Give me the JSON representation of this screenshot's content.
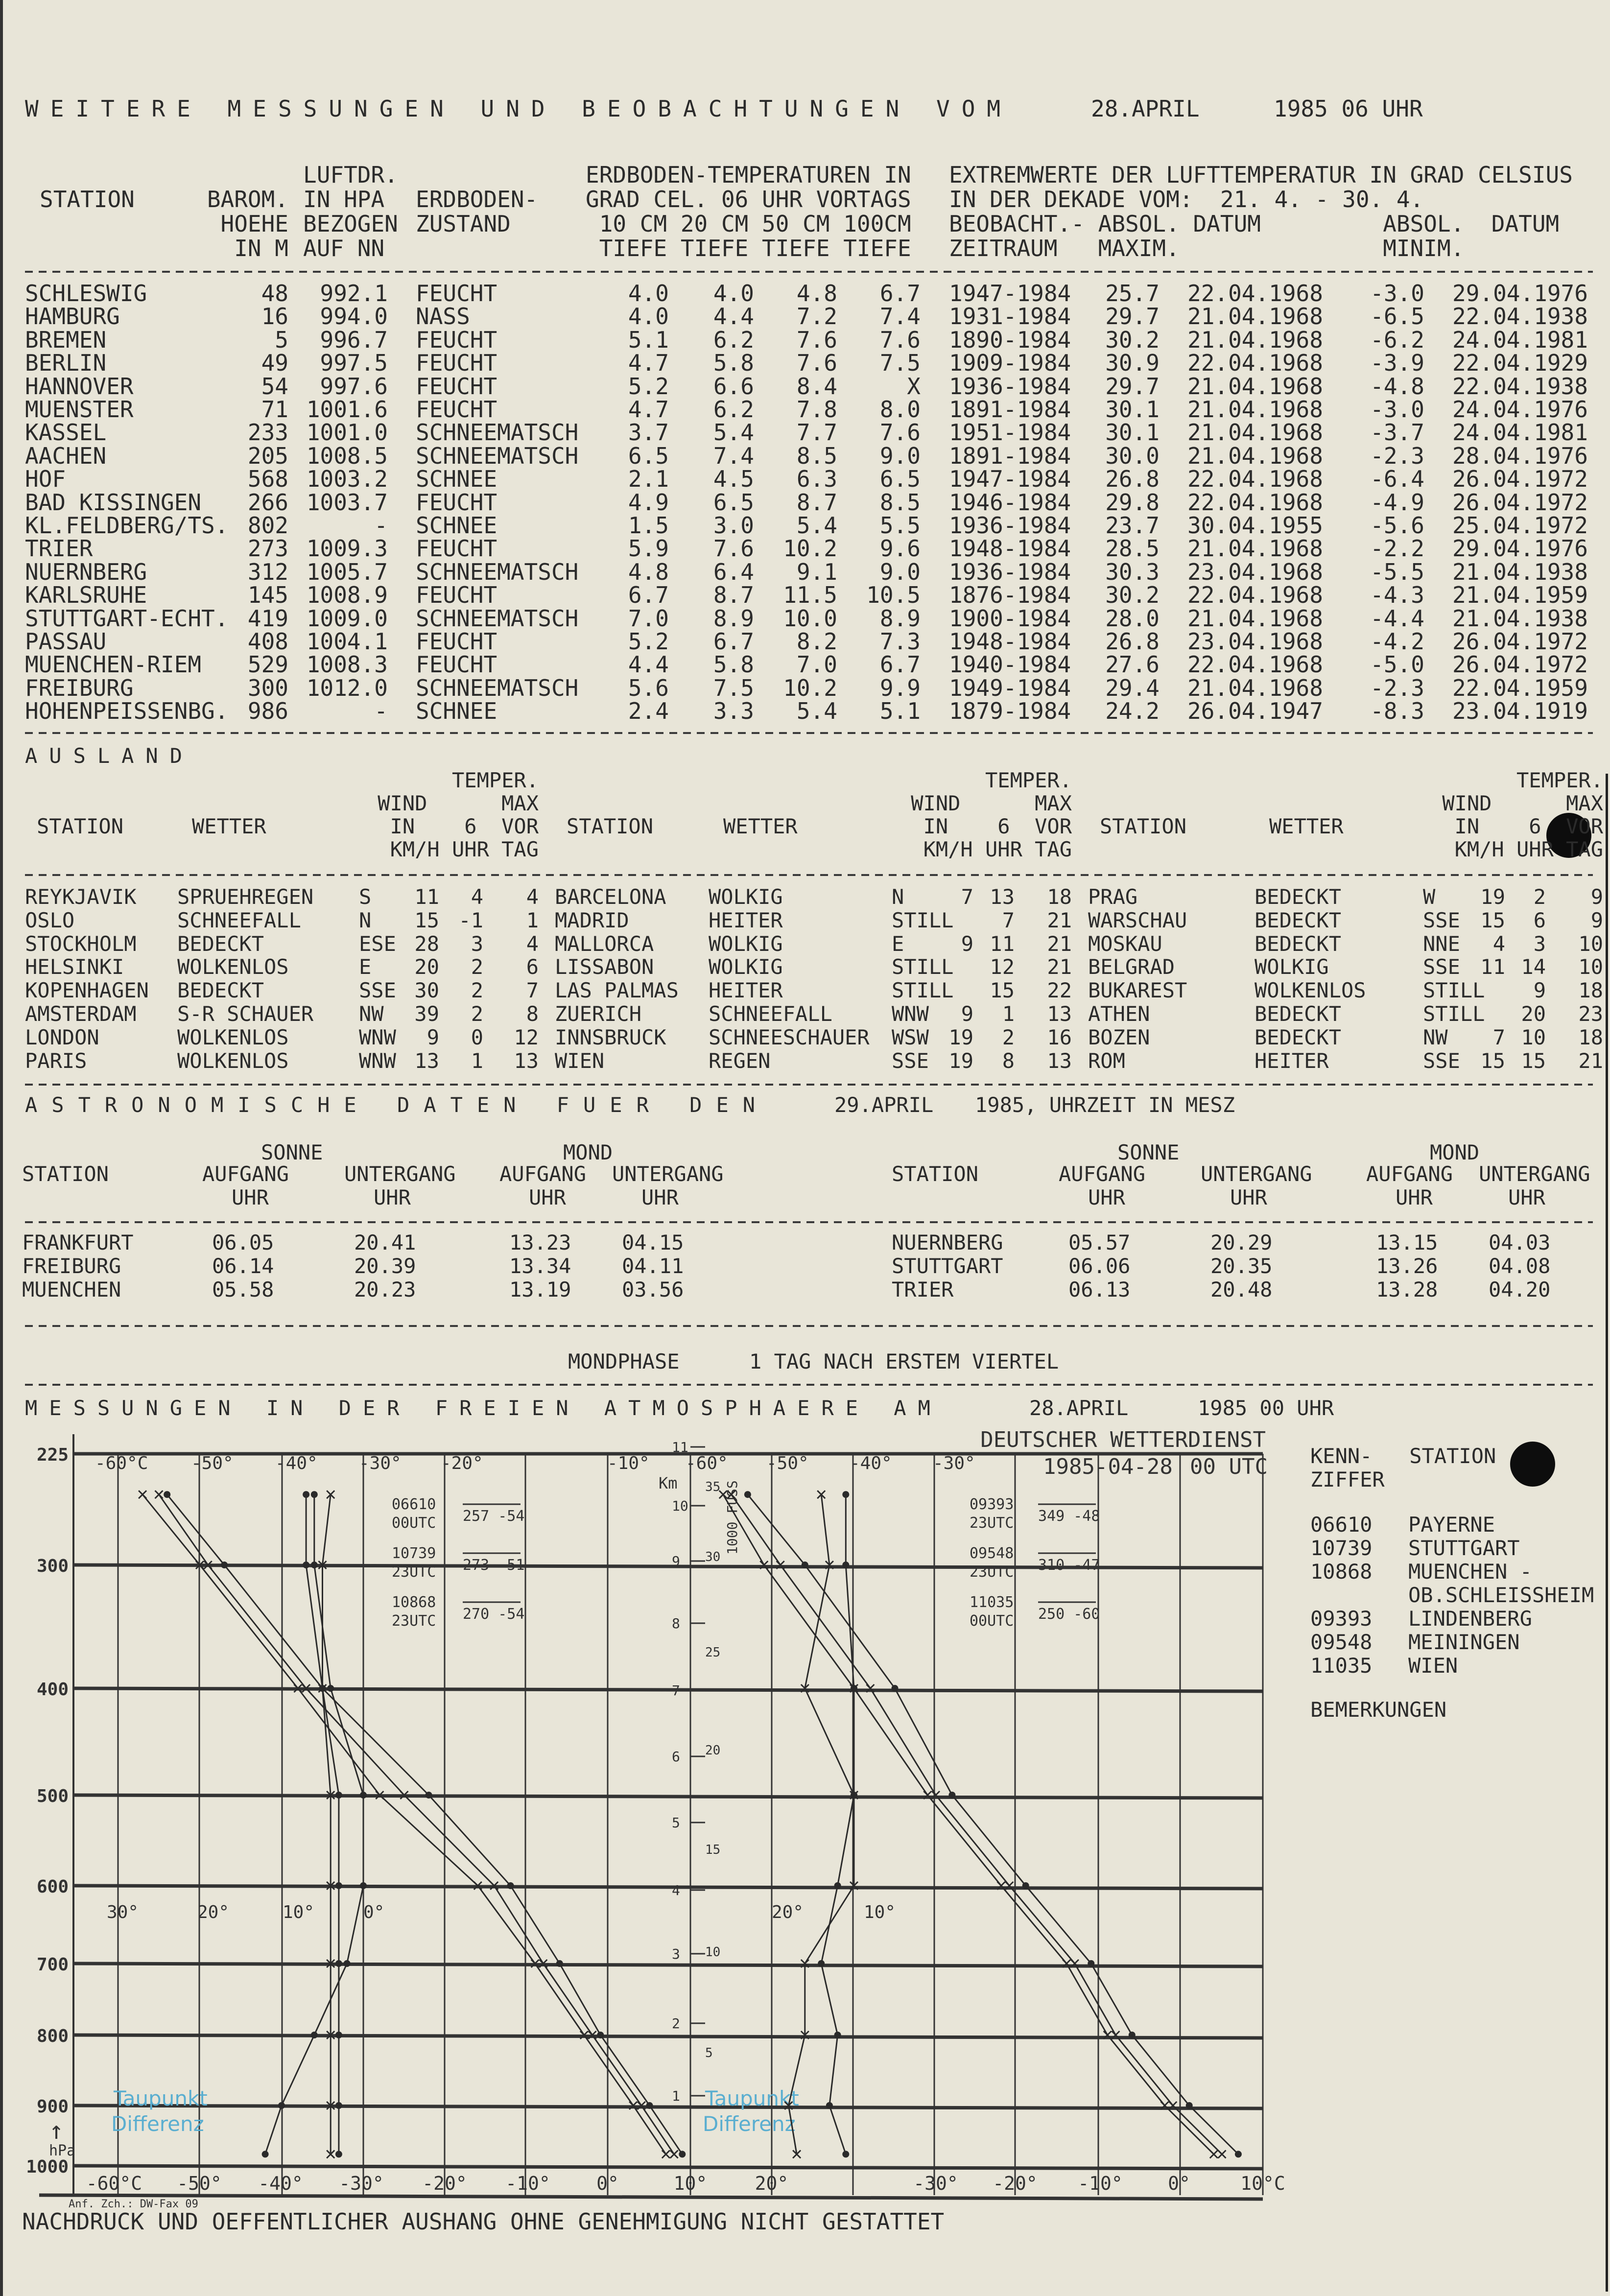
{
  "title": {
    "text": "WEITERE MESSUNGEN UND BEOBACHTUNGEN VOM",
    "date": "28.APRIL",
    "time": "1985 06 UHR"
  },
  "germany": {
    "headers": {
      "station": "STATION",
      "barom": [
        "BAROM.",
        "HOEHE",
        "IN M"
      ],
      "pressure": [
        "LUFTDR.",
        "IN HPA",
        "BEZOGEN",
        "AUF NN"
      ],
      "state": [
        "ERDBODEN-",
        "ZUSTAND"
      ],
      "soil": [
        "ERDBODEN-TEMPERATUREN IN",
        "GRAD CEL. 06 UHR VORTAGS",
        " 10 CM 20 CM 50 CM 100CM",
        " TIEFE TIEFE TIEFE TIEFE"
      ],
      "extreme": [
        "EXTREMWERTE DER LUFTTEMPERATUR IN GRAD CELSIUS",
        "IN DER DEKADE VOM:  21. 4. - 30. 4.",
        "BEOBACHT.- ABSOL. DATUM         ABSOL.  DATUM",
        "ZEITRAUM   MAXIM.               MINIM."
      ]
    },
    "rows": [
      {
        "station": "SCHLESWIG",
        "height": "48",
        "pressure": "992.1",
        "state": "FEUCHT",
        "t10": "4.0",
        "t20": "4.0",
        "t50": "4.8",
        "t100": "6.7",
        "period": "1947-1984",
        "max": "25.7",
        "max_date": "22.04.1968",
        "min": "-3.0",
        "min_date": "29.04.1976"
      },
      {
        "station": "HAMBURG",
        "height": "16",
        "pressure": "994.0",
        "state": "NASS",
        "t10": "4.0",
        "t20": "4.4",
        "t50": "7.2",
        "t100": "7.4",
        "period": "1931-1984",
        "max": "29.7",
        "max_date": "21.04.1968",
        "min": "-6.5",
        "min_date": "22.04.1938"
      },
      {
        "station": "BREMEN",
        "height": "5",
        "pressure": "996.7",
        "state": "FEUCHT",
        "t10": "5.1",
        "t20": "6.2",
        "t50": "7.6",
        "t100": "7.6",
        "period": "1890-1984",
        "max": "30.2",
        "max_date": "21.04.1968",
        "min": "-6.2",
        "min_date": "24.04.1981"
      },
      {
        "station": "BERLIN",
        "height": "49",
        "pressure": "997.5",
        "state": "FEUCHT",
        "t10": "4.7",
        "t20": "5.8",
        "t50": "7.6",
        "t100": "7.5",
        "period": "1909-1984",
        "max": "30.9",
        "max_date": "22.04.1968",
        "min": "-3.9",
        "min_date": "22.04.1929"
      },
      {
        "station": "HANNOVER",
        "height": "54",
        "pressure": "997.6",
        "state": "FEUCHT",
        "t10": "5.2",
        "t20": "6.6",
        "t50": "8.4",
        "t100": "X",
        "period": "1936-1984",
        "max": "29.7",
        "max_date": "21.04.1968",
        "min": "-4.8",
        "min_date": "22.04.1938"
      },
      {
        "station": "MUENSTER",
        "height": "71",
        "pressure": "1001.6",
        "state": "FEUCHT",
        "t10": "4.7",
        "t20": "6.2",
        "t50": "7.8",
        "t100": "8.0",
        "period": "1891-1984",
        "max": "30.1",
        "max_date": "21.04.1968",
        "min": "-3.0",
        "min_date": "24.04.1976"
      },
      {
        "station": "KASSEL",
        "height": "233",
        "pressure": "1001.0",
        "state": "SCHNEEMATSCH",
        "t10": "3.7",
        "t20": "5.4",
        "t50": "7.7",
        "t100": "7.6",
        "period": "1951-1984",
        "max": "30.1",
        "max_date": "21.04.1968",
        "min": "-3.7",
        "min_date": "24.04.1981"
      },
      {
        "station": "AACHEN",
        "height": "205",
        "pressure": "1008.5",
        "state": "SCHNEEMATSCH",
        "t10": "6.5",
        "t20": "7.4",
        "t50": "8.5",
        "t100": "9.0",
        "period": "1891-1984",
        "max": "30.0",
        "max_date": "21.04.1968",
        "min": "-2.3",
        "min_date": "28.04.1976"
      },
      {
        "station": "HOF",
        "height": "568",
        "pressure": "1003.2",
        "state": "SCHNEE",
        "t10": "2.1",
        "t20": "4.5",
        "t50": "6.3",
        "t100": "6.5",
        "period": "1947-1984",
        "max": "26.8",
        "max_date": "22.04.1968",
        "min": "-6.4",
        "min_date": "26.04.1972"
      },
      {
        "station": "BAD KISSINGEN",
        "height": "266",
        "pressure": "1003.7",
        "state": "FEUCHT",
        "t10": "4.9",
        "t20": "6.5",
        "t50": "8.7",
        "t100": "8.5",
        "period": "1946-1984",
        "max": "29.8",
        "max_date": "22.04.1968",
        "min": "-4.9",
        "min_date": "26.04.1972"
      },
      {
        "station": "KL.FELDBERG/TS.",
        "height": "802",
        "pressure": "-",
        "state": "SCHNEE",
        "t10": "1.5",
        "t20": "3.0",
        "t50": "5.4",
        "t100": "5.5",
        "period": "1936-1984",
        "max": "23.7",
        "max_date": "30.04.1955",
        "min": "-5.6",
        "min_date": "25.04.1972"
      },
      {
        "station": "TRIER",
        "height": "273",
        "pressure": "1009.3",
        "state": "FEUCHT",
        "t10": "5.9",
        "t20": "7.6",
        "t50": "10.2",
        "t100": "9.6",
        "period": "1948-1984",
        "max": "28.5",
        "max_date": "21.04.1968",
        "min": "-2.2",
        "min_date": "29.04.1976"
      },
      {
        "station": "NUERNBERG",
        "height": "312",
        "pressure": "1005.7",
        "state": "SCHNEEMATSCH",
        "t10": "4.8",
        "t20": "6.4",
        "t50": "9.1",
        "t100": "9.0",
        "period": "1936-1984",
        "max": "30.3",
        "max_date": "23.04.1968",
        "min": "-5.5",
        "min_date": "21.04.1938"
      },
      {
        "station": "KARLSRUHE",
        "height": "145",
        "pressure": "1008.9",
        "state": "FEUCHT",
        "t10": "6.7",
        "t20": "8.7",
        "t50": "11.5",
        "t100": "10.5",
        "period": "1876-1984",
        "max": "30.2",
        "max_date": "22.04.1968",
        "min": "-4.3",
        "min_date": "21.04.1959"
      },
      {
        "station": "STUTTGART-ECHT.",
        "height": "419",
        "pressure": "1009.0",
        "state": "SCHNEEMATSCH",
        "t10": "7.0",
        "t20": "8.9",
        "t50": "10.0",
        "t100": "8.9",
        "period": "1900-1984",
        "max": "28.0",
        "max_date": "21.04.1968",
        "min": "-4.4",
        "min_date": "21.04.1938"
      },
      {
        "station": "PASSAU",
        "height": "408",
        "pressure": "1004.1",
        "state": "FEUCHT",
        "t10": "5.2",
        "t20": "6.7",
        "t50": "8.2",
        "t100": "7.3",
        "period": "1948-1984",
        "max": "26.8",
        "max_date": "23.04.1968",
        "min": "-4.2",
        "min_date": "26.04.1972"
      },
      {
        "station": "MUENCHEN-RIEM",
        "height": "529",
        "pressure": "1008.3",
        "state": "FEUCHT",
        "t10": "4.4",
        "t20": "5.8",
        "t50": "7.0",
        "t100": "6.7",
        "period": "1940-1984",
        "max": "27.6",
        "max_date": "22.04.1968",
        "min": "-5.0",
        "min_date": "26.04.1972"
      },
      {
        "station": "FREIBURG",
        "height": "300",
        "pressure": "1012.0",
        "state": "SCHNEEMATSCH",
        "t10": "5.6",
        "t20": "7.5",
        "t50": "10.2",
        "t100": "9.9",
        "period": "1949-1984",
        "max": "29.4",
        "max_date": "21.04.1968",
        "min": "-2.3",
        "min_date": "22.04.1959"
      },
      {
        "station": "HOHENPEISSENBG.",
        "height": "986",
        "pressure": "-",
        "state": "SCHNEE",
        "t10": "2.4",
        "t20": "3.3",
        "t50": "5.4",
        "t100": "5.1",
        "period": "1879-1984",
        "max": "24.2",
        "max_date": "26.04.1947",
        "min": "-8.3",
        "min_date": "23.04.1919"
      }
    ]
  },
  "ausland": {
    "title": "AUSLAND",
    "headers": {
      "station": "STATION",
      "weather": "WETTER",
      "block": [
        "     TEMPER.",
        "WIND      MAX",
        " IN    6  VOR",
        "KM/H UHR TAG"
      ]
    },
    "groups": [
      {
        "rows": [
          {
            "station": "REYKJAVIK",
            "weather": "SPRUEHREGEN",
            "dir": "S",
            "speed": "11",
            "t6": "4",
            "max": "4"
          },
          {
            "station": "OSLO",
            "weather": "SCHNEEFALL",
            "dir": "N",
            "speed": "15",
            "t6": "-1",
            "max": "1"
          },
          {
            "station": "STOCKHOLM",
            "weather": "BEDECKT",
            "dir": "ESE",
            "speed": "28",
            "t6": "3",
            "max": "4"
          },
          {
            "station": "HELSINKI",
            "weather": "WOLKENLOS",
            "dir": "E",
            "speed": "20",
            "t6": "2",
            "max": "6"
          },
          {
            "station": "KOPENHAGEN",
            "weather": "BEDECKT",
            "dir": "SSE",
            "speed": "30",
            "t6": "2",
            "max": "7"
          },
          {
            "station": "AMSTERDAM",
            "weather": "S-R SCHAUER",
            "dir": "NW",
            "speed": "39",
            "t6": "2",
            "max": "8"
          },
          {
            "station": "LONDON",
            "weather": "WOLKENLOS",
            "dir": "WNW",
            "speed": "9",
            "t6": "0",
            "max": "12"
          },
          {
            "station": "PARIS",
            "weather": "WOLKENLOS",
            "dir": "WNW",
            "speed": "13",
            "t6": "1",
            "max": "13"
          }
        ]
      },
      {
        "rows": [
          {
            "station": "BARCELONA",
            "weather": "WOLKIG",
            "dir": "N",
            "speed": "7",
            "t6": "13",
            "max": "18"
          },
          {
            "station": "MADRID",
            "weather": "HEITER",
            "dir": "STILL",
            "speed": "",
            "t6": "7",
            "max": "21"
          },
          {
            "station": "MALLORCA",
            "weather": "WOLKIG",
            "dir": "E",
            "speed": "9",
            "t6": "11",
            "max": "21"
          },
          {
            "station": "LISSABON",
            "weather": "WOLKIG",
            "dir": "STILL",
            "speed": "",
            "t6": "12",
            "max": "21"
          },
          {
            "station": "LAS PALMAS",
            "weather": "HEITER",
            "dir": "STILL",
            "speed": "",
            "t6": "15",
            "max": "22"
          },
          {
            "station": "ZUERICH",
            "weather": "SCHNEEFALL",
            "dir": "WNW",
            "speed": "9",
            "t6": "1",
            "max": "13"
          },
          {
            "station": "INNSBRUCK",
            "weather": "SCHNEESCHAUER",
            "dir": "WSW",
            "speed": "19",
            "t6": "2",
            "max": "16"
          },
          {
            "station": "WIEN",
            "weather": "REGEN",
            "dir": "SSE",
            "speed": "19",
            "t6": "8",
            "max": "13"
          }
        ]
      },
      {
        "rows": [
          {
            "station": "PRAG",
            "weather": "BEDECKT",
            "dir": "W",
            "speed": "19",
            "t6": "2",
            "max": "9"
          },
          {
            "station": "WARSCHAU",
            "weather": "BEDECKT",
            "dir": "SSE",
            "speed": "15",
            "t6": "6",
            "max": "9"
          },
          {
            "station": "MOSKAU",
            "weather": "BEDECKT",
            "dir": "NNE",
            "speed": "4",
            "t6": "3",
            "max": "10"
          },
          {
            "station": "BELGRAD",
            "weather": "WOLKIG",
            "dir": "SSE",
            "speed": "11",
            "t6": "14",
            "max": "10"
          },
          {
            "station": "BUKAREST",
            "weather": "WOLKENLOS",
            "dir": "STILL",
            "speed": "",
            "t6": "9",
            "max": "18"
          },
          {
            "station": "ATHEN",
            "weather": "BEDECKT",
            "dir": "STILL",
            "speed": "",
            "t6": "20",
            "max": "23"
          },
          {
            "station": "BOZEN",
            "weather": "BEDECKT",
            "dir": "NW",
            "speed": "7",
            "t6": "10",
            "max": "18"
          },
          {
            "station": "ROM",
            "weather": "HEITER",
            "dir": "SSE",
            "speed": "15",
            "t6": "15",
            "max": "21"
          }
        ]
      }
    ]
  },
  "astro": {
    "title": "ASTRONOMISCHE DATEN FUER DEN",
    "date": "29.APRIL",
    "suffix": "1985, UHRZEIT IN MESZ",
    "headers": {
      "sun": "SONNE",
      "moon": "MOND",
      "station": "STATION",
      "rise": "AUFGANG",
      "set": "UNTERGANG",
      "unit": "UHR"
    },
    "groups": [
      {
        "rows": [
          {
            "station": "FRANKFURT",
            "sunrise": "06.05",
            "sunset": "20.41",
            "moonrise": "13.23",
            "moonset": "04.15"
          },
          {
            "station": "FREIBURG",
            "sunrise": "06.14",
            "sunset": "20.39",
            "moonrise": "13.34",
            "moonset": "04.11"
          },
          {
            "station": "MUENCHEN",
            "sunrise": "05.58",
            "sunset": "20.23",
            "moonrise": "13.19",
            "moonset": "03.56"
          }
        ]
      },
      {
        "rows": [
          {
            "station": "NUERNBERG",
            "sunrise": "05.57",
            "sunset": "20.29",
            "moonrise": "13.15",
            "moonset": "04.03"
          },
          {
            "station": "STUTTGART",
            "sunrise": "06.06",
            "sunset": "20.35",
            "moonrise": "13.26",
            "moonset": "04.08"
          },
          {
            "station": "TRIER",
            "sunrise": "06.13",
            "sunset": "20.48",
            "moonrise": "13.28",
            "moonset": "04.20"
          }
        ]
      }
    ],
    "moonphase_label": "MONDPHASE",
    "moonphase": "1 TAG NACH ERSTEM VIERTEL"
  },
  "aerology": {
    "title": "MESSUNGEN IN DER FREIEN ATMOSPHAERE AM",
    "date": "28.APRIL",
    "time": "1985 00 UHR",
    "issuer": "DEUTSCHER WETTERDIENST",
    "chart_date": "1985-04-28",
    "chart_time": "00 UTC",
    "pressure_levels": [
      "225",
      "300",
      "400",
      "500",
      "600",
      "700",
      "800",
      "900",
      "1000"
    ],
    "pressure_unit": "hPa",
    "top_labels_left": [
      "-60°C",
      "-50°",
      "-40°",
      "-30°",
      "-20°",
      "-10°"
    ],
    "top_labels_right": [
      "-60°",
      "-50°",
      "-40°",
      "-30°"
    ],
    "bottom_labels": [
      "-60°C",
      "-50°",
      "-40°",
      "-30°",
      "-20°",
      "-10°",
      "0°",
      "10°",
      "20°",
      "-30°",
      "-20°",
      "-10°",
      "0°",
      "10°C"
    ],
    "diff_labels": [
      "30°",
      "20°",
      "10°",
      "0°",
      "20°",
      "10°"
    ],
    "km_label": "Km",
    "km_ticks": [
      "11",
      "10",
      "9",
      "8",
      "7",
      "6",
      "5",
      "4",
      "3",
      "2",
      "1"
    ],
    "feet_label": "1000 FUSS",
    "feet_ticks": [
      "35",
      "30",
      "25",
      "20",
      "15",
      "10",
      "5"
    ],
    "dewpoint_label": [
      "Taupunkt",
      "Differenz"
    ],
    "legend_left": [
      {
        "id": "06610",
        "time": "00UTC",
        "values": "257 -54"
      },
      {
        "id": "10739",
        "time": "23UTC",
        "values": "273 -51"
      },
      {
        "id": "10868",
        "time": "23UTC",
        "values": "270 -54"
      }
    ],
    "legend_right": [
      {
        "id": "09393",
        "time": "23UTC",
        "values": "349 -48"
      },
      {
        "id": "09548",
        "time": "23UTC",
        "values": "310 -47"
      },
      {
        "id": "11035",
        "time": "00UTC",
        "values": "250 -60"
      }
    ],
    "form_id": "Anf. Zch.: DW-Fax 09",
    "key_header": [
      "KENN-   STATION",
      "ZIFFER"
    ],
    "stations": [
      {
        "id": "06610",
        "name": "PAYERNE"
      },
      {
        "id": "10739",
        "name": "STUTTGART"
      },
      {
        "id": "10868",
        "name": "MUENCHEN -"
      },
      {
        "id": "",
        "name": "OB.SCHLEISSHEIM"
      },
      {
        "id": "09393",
        "name": "LINDENBERG"
      },
      {
        "id": "09548",
        "name": "MEININGEN"
      },
      {
        "id": "11035",
        "name": "WIEN"
      }
    ],
    "remarks": "BEMERKUNGEN"
  },
  "footer": "NACHDRUCK UND OEFFENTLICHER AUSHANG OHNE GENEHMIGUNG NICHT GESTATTET",
  "colors": {
    "paper": "#e8e5d8",
    "ink": "#2b2b2b",
    "annotation_blue": "#5aaed0"
  }
}
